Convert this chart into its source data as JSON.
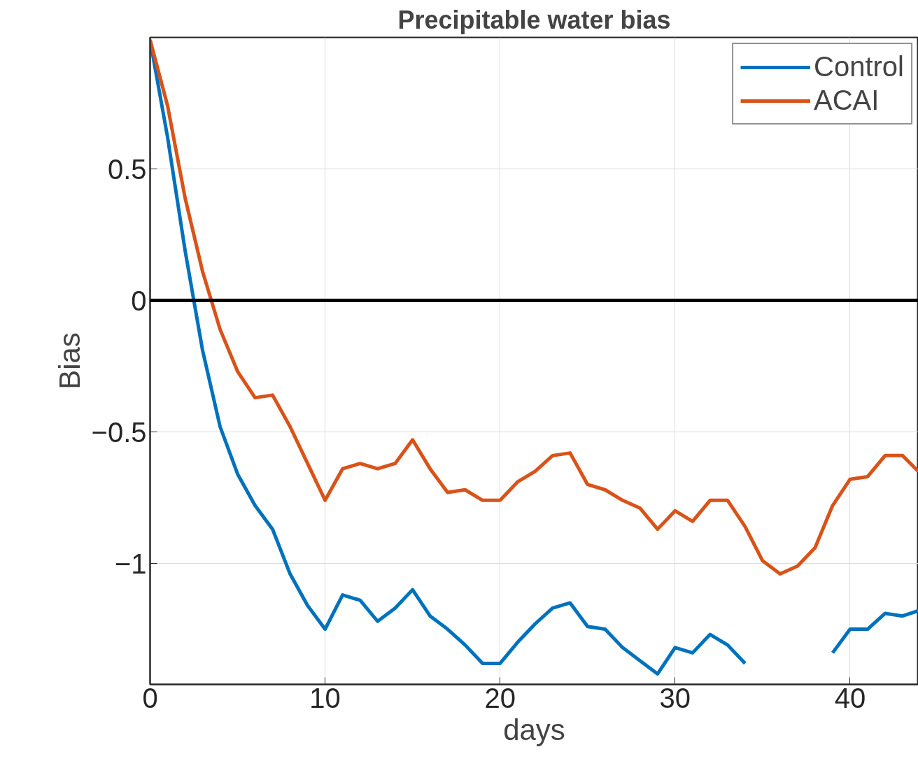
{
  "chart_data": {
    "type": "line",
    "title": "Precipitable water bias",
    "xlabel": "days",
    "ylabel": "Bias",
    "x": [
      0,
      1,
      2,
      3,
      4,
      5,
      6,
      7,
      8,
      9,
      10,
      11,
      12,
      13,
      14,
      15,
      16,
      17,
      18,
      19,
      20,
      21,
      22,
      23,
      24,
      25,
      26,
      27,
      28,
      29,
      30,
      31,
      32,
      33,
      34,
      35,
      36,
      37,
      38,
      39,
      40,
      41,
      42,
      43,
      43.9
    ],
    "series": [
      {
        "name": "Control",
        "color": "#0072bd",
        "values": [
          0.99,
          0.62,
          0.19,
          -0.19,
          -0.48,
          -0.66,
          -0.78,
          -0.87,
          -1.04,
          -1.16,
          -1.25,
          -1.12,
          -1.14,
          -1.22,
          -1.17,
          -1.1,
          -1.2,
          -1.25,
          -1.31,
          -1.38,
          -1.38,
          -1.3,
          -1.23,
          -1.17,
          -1.15,
          -1.24,
          -1.25,
          -1.32,
          -1.37,
          -1.42,
          -1.32,
          -1.34,
          -1.27,
          -1.31,
          -1.38,
          null,
          null,
          null,
          null,
          -1.34,
          -1.25,
          -1.25,
          -1.19,
          -1.2,
          -1.18
        ]
      },
      {
        "name": "ACAI",
        "color": "#d95319",
        "values": [
          0.99,
          0.74,
          0.39,
          0.11,
          -0.11,
          -0.27,
          -0.37,
          -0.36,
          -0.48,
          -0.62,
          -0.76,
          -0.64,
          -0.62,
          -0.64,
          -0.62,
          -0.53,
          -0.64,
          -0.73,
          -0.72,
          -0.76,
          -0.76,
          -0.69,
          -0.65,
          -0.59,
          -0.58,
          -0.7,
          -0.72,
          -0.76,
          -0.79,
          -0.87,
          -0.8,
          -0.84,
          -0.76,
          -0.76,
          -0.86,
          -0.99,
          -1.04,
          -1.01,
          -0.94,
          -0.78,
          -0.68,
          -0.67,
          -0.59,
          -0.59,
          -0.65
        ]
      }
    ],
    "xlim": [
      0,
      43.9
    ],
    "ylim": [
      -1.46,
      1.0
    ],
    "xticks": [
      0,
      10,
      20,
      30,
      40
    ],
    "yticks": [
      -1,
      -0.5,
      0,
      0.5
    ],
    "ref_lines": [
      {
        "axis": "y",
        "value": 0,
        "color": "#000000"
      }
    ],
    "grid": true,
    "legend": "top right",
    "line_style": "solid",
    "marker": "none"
  }
}
